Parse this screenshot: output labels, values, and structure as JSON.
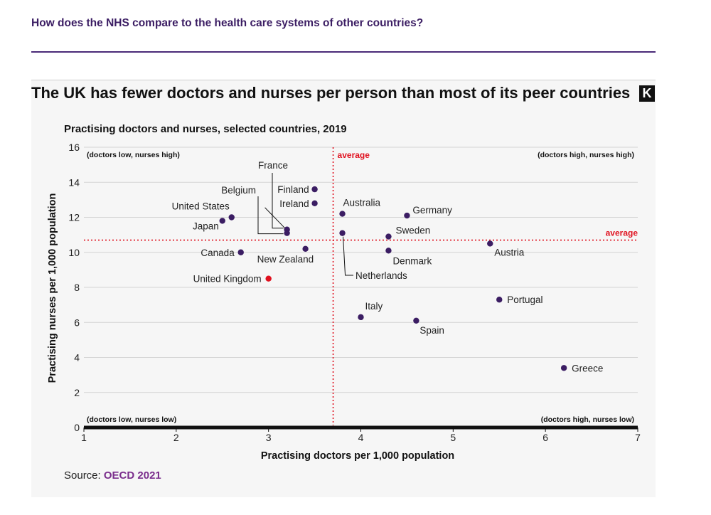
{
  "header": {
    "question": "How does the NHS compare to the health care systems of other countries?"
  },
  "chart_title": "The UK has fewer doctors and nurses per person than most of its peer countries",
  "logo_letter": "K",
  "source": {
    "label": "Source:",
    "link_text": "OECD 2021"
  },
  "colors": {
    "point": "#3b1d63",
    "highlight": "#e0101e",
    "average_line": "#e0101e",
    "accent": "#4a2a77"
  },
  "chart_data": {
    "type": "scatter",
    "title": "Practising doctors and nurses, selected countries, 2019",
    "xlabel": "Practising doctors per 1,000 population",
    "ylabel": "Practising nurses per 1,000 population",
    "xlim": [
      1,
      7
    ],
    "ylim": [
      0,
      16
    ],
    "xticks": [
      1,
      2,
      3,
      4,
      5,
      6,
      7
    ],
    "yticks": [
      0,
      2,
      4,
      6,
      8,
      10,
      12,
      14,
      16
    ],
    "grid": true,
    "averages": {
      "x": 3.7,
      "y": 10.7,
      "x_label": "average",
      "y_label": "average"
    },
    "quadrant_labels": {
      "top_left": "(doctors low, nurses high)",
      "top_right": "(doctors high, nurses high)",
      "bottom_left": "(doctors low, nurses low)",
      "bottom_right": "(doctors high, nurses low)"
    },
    "points": [
      {
        "name": "United Kingdom",
        "x": 3.0,
        "y": 8.5,
        "highlight": true
      },
      {
        "name": "Canada",
        "x": 2.7,
        "y": 10.0
      },
      {
        "name": "New Zealand",
        "x": 3.4,
        "y": 10.2
      },
      {
        "name": "Japan",
        "x": 2.5,
        "y": 11.8
      },
      {
        "name": "United States",
        "x": 2.6,
        "y": 12.0
      },
      {
        "name": "Belgium",
        "x": 3.2,
        "y": 11.1
      },
      {
        "name": "France",
        "x": 3.2,
        "y": 11.3
      },
      {
        "name": "Finland",
        "x": 3.5,
        "y": 13.6
      },
      {
        "name": "Ireland",
        "x": 3.5,
        "y": 12.8
      },
      {
        "name": "Australia",
        "x": 3.8,
        "y": 12.2
      },
      {
        "name": "Netherlands",
        "x": 3.8,
        "y": 11.1
      },
      {
        "name": "Germany",
        "x": 4.5,
        "y": 12.1
      },
      {
        "name": "Sweden",
        "x": 4.3,
        "y": 10.9
      },
      {
        "name": "Denmark",
        "x": 4.3,
        "y": 10.1
      },
      {
        "name": "Austria",
        "x": 5.4,
        "y": 10.5
      },
      {
        "name": "Portugal",
        "x": 5.5,
        "y": 7.3
      },
      {
        "name": "Italy",
        "x": 4.0,
        "y": 6.3
      },
      {
        "name": "Spain",
        "x": 4.6,
        "y": 6.1
      },
      {
        "name": "Greece",
        "x": 6.2,
        "y": 3.4
      }
    ]
  }
}
